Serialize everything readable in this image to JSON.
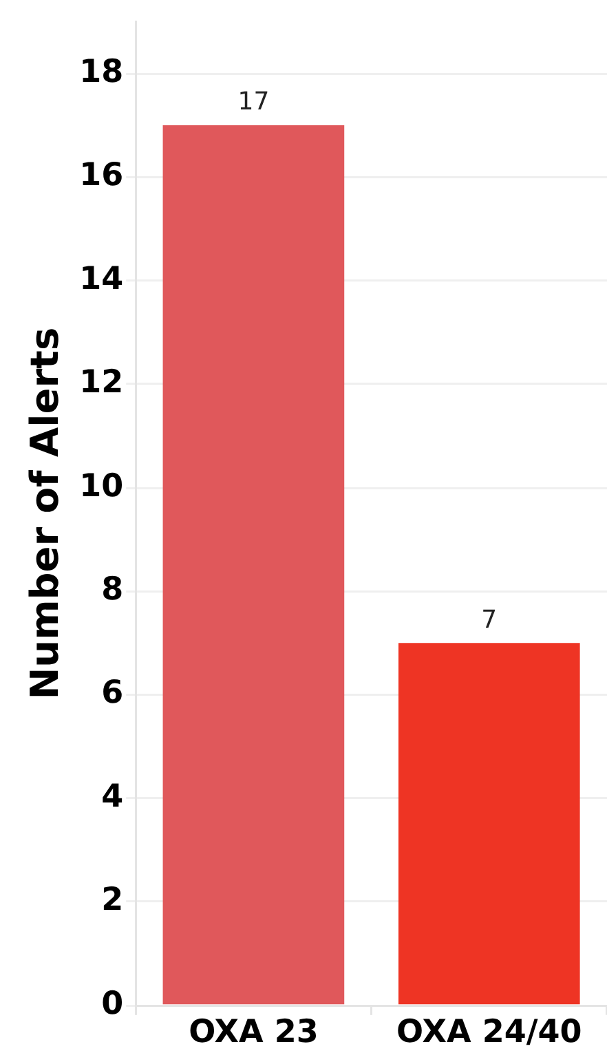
{
  "chart_data": {
    "type": "bar",
    "ylabel": "Number of Alerts",
    "categories": [
      "OXA 23",
      "OXA 24/40"
    ],
    "values": [
      17,
      7
    ],
    "colors": [
      "#e0585b",
      "#ee3424"
    ],
    "ylim": [
      0,
      19
    ],
    "yticks": [
      0,
      2,
      4,
      6,
      8,
      10,
      12,
      14,
      16,
      18
    ],
    "grid": "y",
    "data_labels": true
  }
}
